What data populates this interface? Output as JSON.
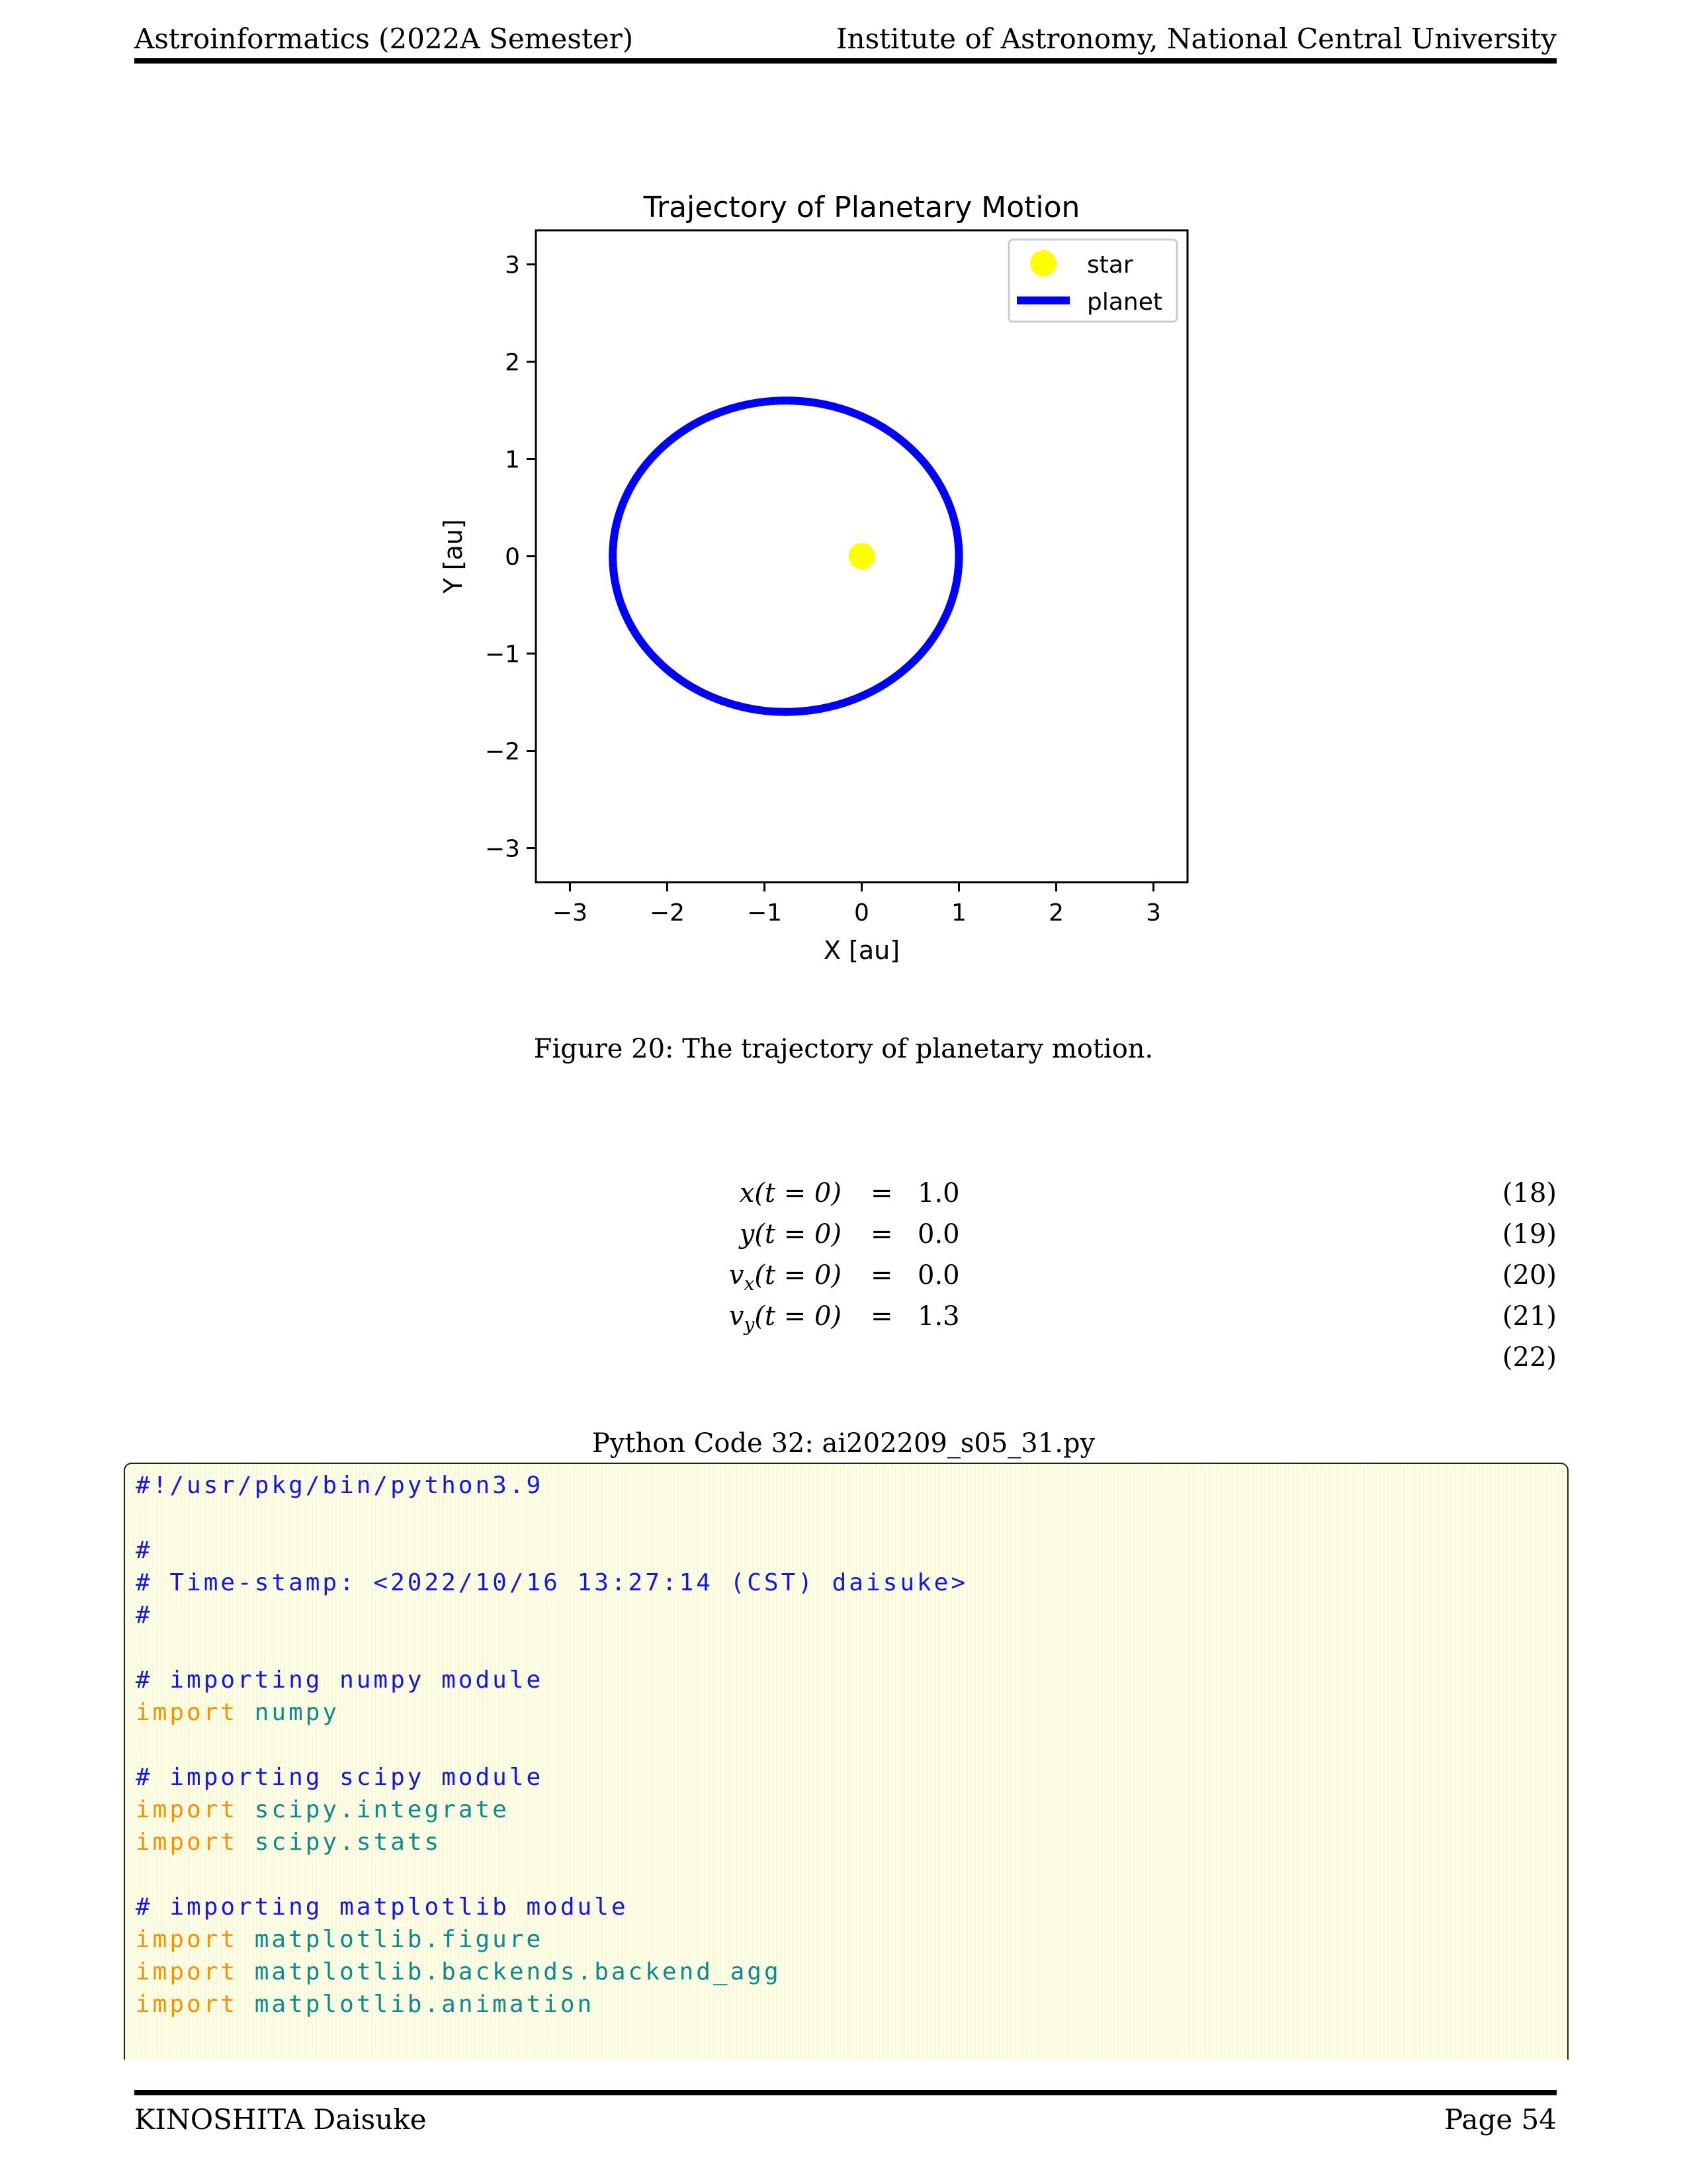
{
  "header": {
    "left": "Astroinformatics (2022A Semester)",
    "right": "Institute of Astronomy, National Central University"
  },
  "chart_data": {
    "type": "line",
    "title": "Trajectory of Planetary Motion",
    "xlabel": "X [au]",
    "ylabel": "Y [au]",
    "xlim": [
      -3.35,
      3.35
    ],
    "ylim": [
      -3.35,
      3.35
    ],
    "xticks": [
      -3,
      -2,
      -1,
      0,
      1,
      2,
      3
    ],
    "yticks": [
      -3,
      -2,
      -1,
      0,
      1,
      2,
      3
    ],
    "tick_labels": [
      "−3",
      "−2",
      "−1",
      "0",
      "1",
      "2",
      "3"
    ],
    "grid": false,
    "legend_position": "top-right",
    "series": [
      {
        "name": "star",
        "kind": "scatter",
        "color": "#ffff00",
        "points": [
          [
            0,
            0
          ]
        ]
      },
      {
        "name": "planet",
        "kind": "line",
        "color": "#0000ff",
        "orbit": {
          "center_x": -0.78,
          "center_y": 0.0,
          "semi_major_x": 1.78,
          "semi_minor_y": 1.6
        }
      }
    ]
  },
  "figure_caption": "Figure 20: The trajectory of planetary motion.",
  "equations": [
    {
      "lhs": "x(t = 0)",
      "op": "=",
      "rhs": "1.0",
      "num": "(18)"
    },
    {
      "lhs": "y(t = 0)",
      "op": "=",
      "rhs": "0.0",
      "num": "(19)"
    },
    {
      "lhs": "vx(t = 0)",
      "op": "=",
      "rhs": "0.0",
      "num": "(20)"
    },
    {
      "lhs": "vy(t = 0)",
      "op": "=",
      "rhs": "1.3",
      "num": "(21)"
    },
    {
      "lhs": "",
      "op": "",
      "rhs": "",
      "num": "(22)"
    }
  ],
  "code_caption": "Python Code 32: ai202209_s05_31.py",
  "code": {
    "l1": "#!/usr/pkg/bin/python3.9",
    "l3": "#",
    "l4": "# Time-stamp: <2022/10/16 13:27:14 (CST) daisuke>",
    "l5": "#",
    "l7": "# importing numpy module",
    "l8_kw": "import",
    "l8_md": "numpy",
    "l10": "# importing scipy module",
    "l11_kw": "import",
    "l11_md": "scipy.integrate",
    "l12_kw": "import",
    "l12_md": "scipy.stats",
    "l14": "# importing matplotlib module",
    "l15_kw": "import",
    "l15_md": "matplotlib.figure",
    "l16_kw": "import",
    "l16_md": "matplotlib.backends.backend_agg",
    "l17_kw": "import",
    "l17_md": "matplotlib.animation"
  },
  "footer": {
    "left": "KINOSHITA Daisuke",
    "right": "Page 54"
  }
}
